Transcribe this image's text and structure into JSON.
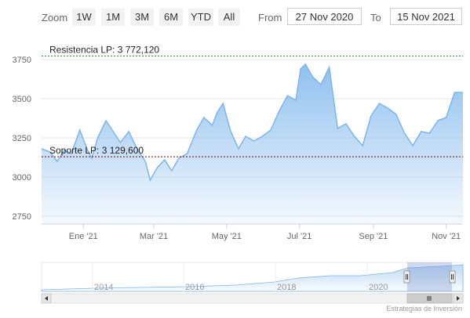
{
  "toolbar": {
    "zoom_label": "Zoom",
    "buttons": [
      "1W",
      "1M",
      "3M",
      "6M",
      "YTD",
      "All"
    ],
    "from_label": "From",
    "from_value": "27 Nov 2020",
    "to_label": "To",
    "to_value": "15 Nov 2021"
  },
  "colors": {
    "line": "#7cb5ec",
    "area_top": "#7cb5ec",
    "resistance_line": "#2e7d32",
    "support_line": "#8b0000",
    "navigator_mask": "#6685c2"
  },
  "chart_data": {
    "type": "area",
    "ylim": [
      2700,
      3850
    ],
    "yticks": [
      "3750",
      "3500",
      "3250",
      "3000",
      "2750"
    ],
    "ytick_values": [
      3750,
      3500,
      3250,
      3000,
      2750
    ],
    "xticks": [
      "Ene '21",
      "Mar '21",
      "May '21",
      "Jul '21",
      "Sep '21",
      "Nov '21"
    ],
    "xtick_dates": [
      "2021-01-01",
      "2021-03-01",
      "2021-05-01",
      "2021-07-01",
      "2021-09-01",
      "2021-11-01"
    ],
    "x_range": [
      "2020-11-27",
      "2021-11-15"
    ],
    "series": [
      {
        "x": [
          "2020-11-27",
          "2020-12-04",
          "2020-12-10",
          "2020-12-16",
          "2020-12-22",
          "2020-12-29",
          "2021-01-04",
          "2021-01-08",
          "2021-01-13",
          "2021-01-20",
          "2021-01-26",
          "2021-02-01",
          "2021-02-08",
          "2021-02-15",
          "2021-02-22",
          "2021-02-26",
          "2021-03-04",
          "2021-03-10",
          "2021-03-16",
          "2021-03-22",
          "2021-03-29",
          "2021-04-06",
          "2021-04-12",
          "2021-04-19",
          "2021-04-23",
          "2021-04-28",
          "2021-05-04",
          "2021-05-11",
          "2021-05-17",
          "2021-05-24",
          "2021-05-31",
          "2021-06-07",
          "2021-06-14",
          "2021-06-21",
          "2021-06-28",
          "2021-07-02",
          "2021-07-06",
          "2021-07-12",
          "2021-07-19",
          "2021-07-26",
          "2021-08-02",
          "2021-08-09",
          "2021-08-16",
          "2021-08-23",
          "2021-08-30",
          "2021-09-06",
          "2021-09-13",
          "2021-09-20",
          "2021-09-27",
          "2021-10-04",
          "2021-10-11",
          "2021-10-18",
          "2021-10-25",
          "2021-11-01",
          "2021-11-08",
          "2021-11-15"
        ],
        "values": [
          3180,
          3160,
          3100,
          3170,
          3150,
          3300,
          3180,
          3120,
          3250,
          3360,
          3290,
          3220,
          3290,
          3180,
          3100,
          2980,
          3060,
          3110,
          3040,
          3120,
          3150,
          3300,
          3380,
          3330,
          3410,
          3470,
          3300,
          3180,
          3260,
          3230,
          3260,
          3300,
          3420,
          3520,
          3490,
          3690,
          3720,
          3640,
          3590,
          3700,
          3310,
          3340,
          3260,
          3200,
          3390,
          3470,
          3440,
          3400,
          3280,
          3200,
          3290,
          3280,
          3360,
          3380,
          3540,
          3540
        ]
      }
    ],
    "annotations": [
      {
        "label": "Resistencia LP: 3 772,120",
        "value": 3772.12
      },
      {
        "label": "Soporte LP: 3 129,600",
        "value": 3129.6
      }
    ],
    "navigator_ticks": [
      "2014",
      "2016",
      "2018",
      "2020"
    ]
  },
  "credit": "Estrategias de Inversión"
}
